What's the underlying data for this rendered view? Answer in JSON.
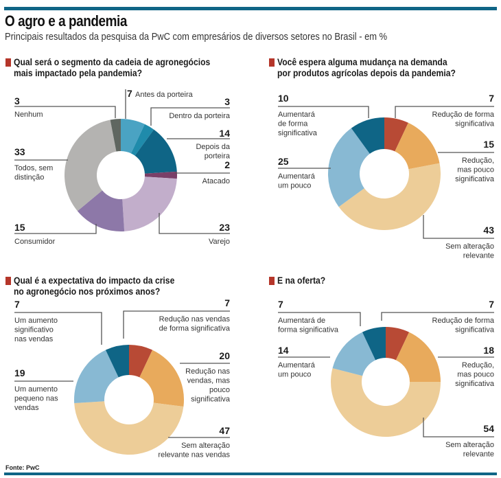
{
  "header": {
    "title": "O agro e a pandemia",
    "subtitle": "Principais resultados da pesquisa da PwC com empresários de diversos setores no Brasil - em %"
  },
  "footer": {
    "source": "Fonte: PwC"
  },
  "colors": {
    "accent_bar": "#0f6586",
    "question_marker": "#b5362a"
  },
  "chart_data": [
    {
      "type": "pie",
      "donut": true,
      "title": "Qual será o segmento da cadeia de agronegócios mais impactado pela pandemia?",
      "title_lines": [
        "Qual será o segmento da cadeia de agronegócios",
        "mais impactado pela pandemia?"
      ],
      "unit": "%",
      "slices": [
        {
          "label": "Antes da porteira",
          "label_lines": [
            "Antes da porteira"
          ],
          "value": 7,
          "color": "#4aa3c3"
        },
        {
          "label": "Dentro da porteira",
          "label_lines": [
            "Dentro da porteira"
          ],
          "value": 3,
          "color": "#1f8bab"
        },
        {
          "label": "Depois da porteira",
          "label_lines": [
            "Depois da",
            "porteira"
          ],
          "value": 14,
          "color": "#0f6586"
        },
        {
          "label": "Atacado",
          "label_lines": [
            "Atacado"
          ],
          "value": 2,
          "color": "#7a3f68"
        },
        {
          "label": "Varejo",
          "label_lines": [
            "Varejo"
          ],
          "value": 23,
          "color": "#c2aecb"
        },
        {
          "label": "Consumidor",
          "label_lines": [
            "Consumidor"
          ],
          "value": 15,
          "color": "#8d78a8"
        },
        {
          "label": "Todos, sem distinção",
          "label_lines": [
            "Todos, sem",
            "distinção"
          ],
          "value": 33,
          "color": "#b4b3b1"
        },
        {
          "label": "Nenhum",
          "label_lines": [
            "Nenhum"
          ],
          "value": 3,
          "color": "#5f6660"
        }
      ]
    },
    {
      "type": "pie",
      "donut": true,
      "title": "Você espera alguma mudança na demanda por produtos agrícolas depois da pandemia?",
      "title_lines": [
        "Você espera alguma mudança na demanda",
        "por produtos agrícolas depois da pandemia?"
      ],
      "unit": "%",
      "slices": [
        {
          "label": "Redução de forma significativa",
          "label_lines": [
            "Redução de forma",
            "significativa"
          ],
          "value": 7,
          "color": "#b84a35"
        },
        {
          "label": "Redução, mas pouco significativa",
          "label_lines": [
            "Redução,",
            "mas pouco",
            "significativa"
          ],
          "value": 15,
          "color": "#e8aa5c"
        },
        {
          "label": "Sem alteração relevante",
          "label_lines": [
            "Sem alteração",
            "relevante"
          ],
          "value": 43,
          "color": "#edcd98"
        },
        {
          "label": "Aumentará um pouco",
          "label_lines": [
            "Aumentará",
            "um pouco"
          ],
          "value": 25,
          "color": "#88b9d3"
        },
        {
          "label": "Aumentará de forma significativa",
          "label_lines": [
            "Aumentará",
            "de forma",
            "significativa"
          ],
          "value": 10,
          "color": "#0f6586"
        }
      ]
    },
    {
      "type": "pie",
      "donut": true,
      "title": "Qual é a expectativa do impacto da crise no agronegócio nos próximos anos?",
      "title_lines": [
        "Qual é a expectativa do impacto da crise",
        "no agronegócio nos próximos anos?"
      ],
      "unit": "%",
      "slices": [
        {
          "label": "Redução nas vendas de forma significativa",
          "label_lines": [
            "Redução nas vendas",
            "de forma significativa"
          ],
          "value": 7,
          "color": "#b84a35"
        },
        {
          "label": "Redução nas vendas, mas pouco significativa",
          "label_lines": [
            "Redução nas",
            "vendas, mas",
            "pouco",
            "significativa"
          ],
          "value": 20,
          "color": "#e8aa5c"
        },
        {
          "label": "Sem alteração relevante nas vendas",
          "label_lines": [
            "Sem alteração",
            "relevante  nas vendas"
          ],
          "value": 47,
          "color": "#edcd98"
        },
        {
          "label": "Um aumento pequeno nas vendas",
          "label_lines": [
            "Um aumento",
            "pequeno nas",
            "vendas"
          ],
          "value": 19,
          "color": "#88b9d3"
        },
        {
          "label": "Um aumento significativo nas vendas",
          "label_lines": [
            "Um aumento",
            "significativo",
            "nas vendas"
          ],
          "value": 7,
          "color": "#0f6586"
        }
      ]
    },
    {
      "type": "pie",
      "donut": true,
      "title": "E na oferta?",
      "title_lines": [
        "E na oferta?"
      ],
      "unit": "%",
      "slices": [
        {
          "label": "Redução de forma significativa",
          "label_lines": [
            "Redução de forma",
            "significativa"
          ],
          "value": 7,
          "color": "#b84a35"
        },
        {
          "label": "Redução, mas pouco significativa",
          "label_lines": [
            "Redução,",
            "mas pouco",
            "significativa"
          ],
          "value": 18,
          "color": "#e8aa5c"
        },
        {
          "label": "Sem alteração relevante",
          "label_lines": [
            "Sem alteração",
            "relevante"
          ],
          "value": 54,
          "color": "#edcd98"
        },
        {
          "label": "Aumentará um pouco",
          "label_lines": [
            "Aumentará",
            "um pouco"
          ],
          "value": 14,
          "color": "#88b9d3"
        },
        {
          "label": "Aumentará de forma significativa",
          "label_lines": [
            "Aumentará de",
            "forma significativa"
          ],
          "value": 7,
          "color": "#0f6586"
        }
      ]
    }
  ]
}
